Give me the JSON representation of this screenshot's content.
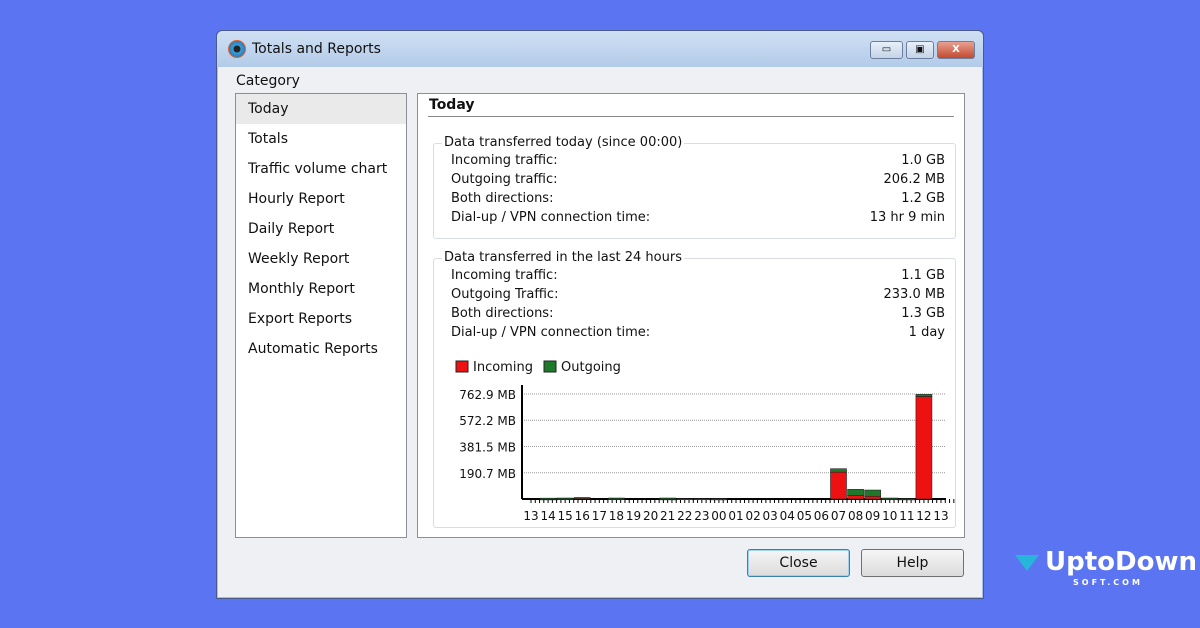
{
  "window": {
    "title": "Totals and Reports",
    "minimize": "▭",
    "maximize": "▣",
    "close": "X"
  },
  "category_label": "Category",
  "categories": [
    "Today",
    "Totals",
    "Traffic volume chart",
    "Hourly Report",
    "Daily Report",
    "Weekly Report",
    "Monthly Report",
    "Export Reports",
    "Automatic Reports"
  ],
  "selected_category": "Today",
  "panel": {
    "title": "Today",
    "today": {
      "legend": "Data transferred today (since 00:00)",
      "rows": [
        {
          "label": "Incoming traffic:",
          "value": "1.0 GB"
        },
        {
          "label": "Outgoing traffic:",
          "value": "206.2 MB"
        },
        {
          "label": "Both directions:",
          "value": "1.2 GB"
        },
        {
          "label": "Dial-up / VPN connection time:",
          "value": "13 hr 9 min"
        }
      ]
    },
    "last24": {
      "legend": "Data transferred in the last 24 hours",
      "rows": [
        {
          "label": "Incoming traffic:",
          "value": "1.1 GB"
        },
        {
          "label": "Outgoing Traffic:",
          "value": "233.0 MB"
        },
        {
          "label": "Both directions:",
          "value": "1.3 GB"
        },
        {
          "label": "Dial-up / VPN connection time:",
          "value": "1 day"
        }
      ]
    }
  },
  "chart_data": {
    "type": "bar",
    "stacked": true,
    "categories": [
      "13",
      "14",
      "15",
      "16",
      "17",
      "18",
      "19",
      "20",
      "21",
      "22",
      "23",
      "00",
      "01",
      "02",
      "03",
      "04",
      "05",
      "06",
      "07",
      "08",
      "09",
      "10",
      "11",
      "12",
      "13"
    ],
    "series": [
      {
        "name": "Incoming",
        "color": "#ee1111",
        "values": [
          0,
          1,
          2,
          6,
          0,
          2,
          0,
          0,
          1,
          0,
          0,
          1,
          0,
          0,
          0,
          0,
          0,
          0,
          195,
          25,
          20,
          2,
          1,
          745,
          0
        ]
      },
      {
        "name": "Outgoing",
        "color": "#1e7a2a",
        "values": [
          0,
          5,
          5,
          5,
          0,
          5,
          0,
          0,
          6,
          2,
          2,
          2,
          0,
          0,
          0,
          0,
          0,
          0,
          25,
          45,
          45,
          5,
          2,
          15,
          0
        ]
      }
    ],
    "ytick_labels": [
      "190.7 MB",
      "381.5 MB",
      "572.2 MB",
      "762.9 MB"
    ],
    "yticks": [
      190.7,
      381.5,
      572.2,
      762.9
    ],
    "ylim": [
      0,
      762.9
    ],
    "grid": true,
    "legend": "top-left"
  },
  "buttons": {
    "close": "Close",
    "help": "Help"
  },
  "watermark": {
    "name": "UptoDown",
    "sub": "SOFT.COM"
  }
}
